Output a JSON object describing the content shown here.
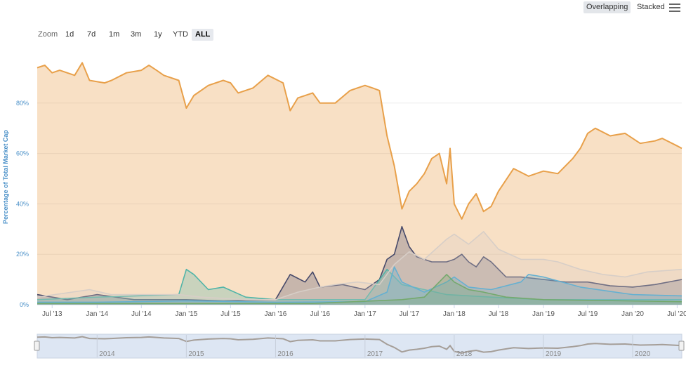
{
  "toolbar": {
    "zoom_label": "Zoom",
    "ranges": [
      "1d",
      "7d",
      "1m",
      "3m",
      "1y",
      "YTD",
      "ALL"
    ],
    "active_range": "ALL",
    "modes": [
      "Overlapping",
      "Stacked"
    ],
    "active_mode": "Overlapping"
  },
  "navigator": {
    "labels": [
      "2014",
      "2015",
      "2016",
      "2017",
      "2018",
      "2019",
      "2020"
    ]
  },
  "chart_data": {
    "type": "area",
    "title": "",
    "ylabel": "Percentage of Total Market Cap",
    "ylim": [
      0,
      100
    ],
    "y_ticks": [
      "0%",
      "20%",
      "40%",
      "60%",
      "80%"
    ],
    "x_ticks": [
      "Jul '13",
      "Jan '14",
      "Jul '14",
      "Jan '15",
      "Jul '15",
      "Jan '16",
      "Jul '16",
      "Jan '17",
      "Jul '17",
      "Jan '18",
      "Jul '18",
      "Jan '19",
      "Jul '19",
      "Jan '20",
      "Jul '20"
    ],
    "grid": true,
    "legend": "bottom",
    "series": [
      {
        "color": "#e8a04a",
        "points": [
          [
            "2013-05-01",
            94
          ],
          [
            "2013-06-01",
            95
          ],
          [
            "2013-07-01",
            92
          ],
          [
            "2013-08-01",
            93
          ],
          [
            "2013-10-01",
            91
          ],
          [
            "2013-11-01",
            96
          ],
          [
            "2013-12-01",
            89
          ],
          [
            "2014-02-01",
            88
          ],
          [
            "2014-03-01",
            89
          ],
          [
            "2014-05-01",
            92
          ],
          [
            "2014-07-01",
            93
          ],
          [
            "2014-08-01",
            95
          ],
          [
            "2014-09-01",
            93
          ],
          [
            "2014-10-01",
            91
          ],
          [
            "2014-12-01",
            89
          ],
          [
            "2015-01-01",
            78
          ],
          [
            "2015-02-01",
            83
          ],
          [
            "2015-04-01",
            87
          ],
          [
            "2015-06-01",
            89
          ],
          [
            "2015-07-01",
            88
          ],
          [
            "2015-08-01",
            84
          ],
          [
            "2015-10-01",
            86
          ],
          [
            "2015-12-01",
            91
          ],
          [
            "2016-02-01",
            88
          ],
          [
            "2016-03-01",
            77
          ],
          [
            "2016-04-01",
            82
          ],
          [
            "2016-06-01",
            84
          ],
          [
            "2016-07-01",
            80
          ],
          [
            "2016-09-01",
            80
          ],
          [
            "2016-11-01",
            85
          ],
          [
            "2017-01-01",
            87
          ],
          [
            "2017-02-01",
            86
          ],
          [
            "2017-03-01",
            85
          ],
          [
            "2017-04-01",
            67
          ],
          [
            "2017-05-01",
            55
          ],
          [
            "2017-06-01",
            38
          ],
          [
            "2017-07-01",
            45
          ],
          [
            "2017-08-01",
            48
          ],
          [
            "2017-09-01",
            52
          ],
          [
            "2017-10-01",
            58
          ],
          [
            "2017-11-01",
            60
          ],
          [
            "2017-12-01",
            48
          ],
          [
            "2017-12-15",
            62
          ],
          [
            "2018-01-01",
            40
          ],
          [
            "2018-02-01",
            34
          ],
          [
            "2018-03-01",
            40
          ],
          [
            "2018-04-01",
            44
          ],
          [
            "2018-05-01",
            37
          ],
          [
            "2018-06-01",
            39
          ],
          [
            "2018-07-01",
            45
          ],
          [
            "2018-09-01",
            54
          ],
          [
            "2018-11-01",
            51
          ],
          [
            "2019-01-01",
            53
          ],
          [
            "2019-03-01",
            52
          ],
          [
            "2019-05-01",
            58
          ],
          [
            "2019-06-01",
            62
          ],
          [
            "2019-07-01",
            68
          ],
          [
            "2019-08-01",
            70
          ],
          [
            "2019-10-01",
            67
          ],
          [
            "2019-12-01",
            68
          ],
          [
            "2020-02-01",
            64
          ],
          [
            "2020-04-01",
            65
          ],
          [
            "2020-05-01",
            66
          ],
          [
            "2020-07-01",
            63
          ],
          [
            "2020-07-20",
            62
          ]
        ]
      },
      {
        "color": "#474a6a",
        "points": [
          [
            "2013-05-01",
            4
          ],
          [
            "2013-09-01",
            2
          ],
          [
            "2014-01-01",
            4
          ],
          [
            "2014-06-01",
            2
          ],
          [
            "2015-01-01",
            2
          ],
          [
            "2015-06-01",
            1.5
          ],
          [
            "2016-01-01",
            2
          ],
          [
            "2016-03-01",
            12
          ],
          [
            "2016-05-01",
            9
          ],
          [
            "2016-06-01",
            13
          ],
          [
            "2016-07-01",
            7
          ],
          [
            "2016-10-01",
            8
          ],
          [
            "2017-01-01",
            6
          ],
          [
            "2017-03-01",
            10
          ],
          [
            "2017-04-01",
            18
          ],
          [
            "2017-05-01",
            20
          ],
          [
            "2017-06-01",
            31
          ],
          [
            "2017-07-01",
            23
          ],
          [
            "2017-08-01",
            19
          ],
          [
            "2017-10-01",
            17
          ],
          [
            "2017-12-01",
            17
          ],
          [
            "2018-01-01",
            18
          ],
          [
            "2018-02-01",
            20
          ],
          [
            "2018-03-01",
            17
          ],
          [
            "2018-04-01",
            15
          ],
          [
            "2018-05-01",
            19
          ],
          [
            "2018-06-01",
            17
          ],
          [
            "2018-08-01",
            11
          ],
          [
            "2018-10-01",
            11
          ],
          [
            "2019-01-01",
            10
          ],
          [
            "2019-04-01",
            9
          ],
          [
            "2019-07-01",
            9
          ],
          [
            "2019-10-01",
            7.5
          ],
          [
            "2020-01-01",
            7
          ],
          [
            "2020-04-01",
            8
          ],
          [
            "2020-07-20",
            10
          ]
        ]
      },
      {
        "color": "#50b4a8",
        "points": [
          [
            "2013-05-01",
            2
          ],
          [
            "2014-01-01",
            3
          ],
          [
            "2014-12-01",
            4
          ],
          [
            "2015-01-01",
            14
          ],
          [
            "2015-02-01",
            12
          ],
          [
            "2015-04-01",
            6
          ],
          [
            "2015-06-01",
            7
          ],
          [
            "2015-09-01",
            3
          ],
          [
            "2016-01-01",
            2
          ],
          [
            "2017-01-01",
            2
          ],
          [
            "2017-04-01",
            14
          ],
          [
            "2017-06-01",
            8
          ],
          [
            "2017-09-01",
            6
          ],
          [
            "2017-12-01",
            4
          ],
          [
            "2018-06-01",
            3
          ],
          [
            "2019-01-01",
            2
          ],
          [
            "2020-07-20",
            2
          ]
        ]
      },
      {
        "color": "#3aa6d6",
        "points": [
          [
            "2013-05-01",
            1
          ],
          [
            "2014-01-01",
            1
          ],
          [
            "2015-01-01",
            1.5
          ],
          [
            "2016-01-01",
            1
          ],
          [
            "2017-01-01",
            1.2
          ],
          [
            "2017-04-01",
            5
          ],
          [
            "2017-05-01",
            15
          ],
          [
            "2017-06-01",
            9
          ],
          [
            "2017-09-01",
            5
          ],
          [
            "2017-12-01",
            9
          ],
          [
            "2018-01-01",
            11
          ],
          [
            "2018-03-01",
            7
          ],
          [
            "2018-06-01",
            6
          ],
          [
            "2018-10-01",
            9
          ],
          [
            "2018-11-01",
            12
          ],
          [
            "2019-01-01",
            11
          ],
          [
            "2019-06-01",
            7
          ],
          [
            "2020-01-01",
            4
          ],
          [
            "2020-07-20",
            3.5
          ]
        ]
      },
      {
        "color": "#4e9b4b",
        "points": [
          [
            "2013-05-01",
            0.5
          ],
          [
            "2016-06-01",
            0.5
          ],
          [
            "2017-06-01",
            2
          ],
          [
            "2017-09-01",
            3
          ],
          [
            "2017-12-01",
            12
          ],
          [
            "2018-01-01",
            9
          ],
          [
            "2018-03-01",
            6
          ],
          [
            "2018-05-01",
            5
          ],
          [
            "2018-08-01",
            3
          ],
          [
            "2019-01-01",
            2
          ],
          [
            "2020-07-20",
            1.2
          ]
        ]
      },
      {
        "color": "#d7cec7",
        "points": [
          [
            "2013-05-01",
            3
          ],
          [
            "2013-12-01",
            6
          ],
          [
            "2014-03-01",
            4
          ],
          [
            "2014-12-01",
            4
          ],
          [
            "2015-03-01",
            3
          ],
          [
            "2015-09-01",
            2
          ],
          [
            "2016-01-01",
            2
          ],
          [
            "2016-04-01",
            5
          ],
          [
            "2016-07-01",
            7
          ],
          [
            "2016-09-01",
            8
          ],
          [
            "2016-12-01",
            9
          ],
          [
            "2017-03-01",
            8
          ],
          [
            "2017-05-01",
            16
          ],
          [
            "2017-07-01",
            21
          ],
          [
            "2017-09-01",
            18
          ],
          [
            "2017-12-01",
            26
          ],
          [
            "2018-01-01",
            28
          ],
          [
            "2018-03-01",
            24
          ],
          [
            "2018-05-01",
            29
          ],
          [
            "2018-07-01",
            22
          ],
          [
            "2018-10-01",
            18
          ],
          [
            "2019-01-01",
            18
          ],
          [
            "2019-03-01",
            17
          ],
          [
            "2019-06-01",
            14
          ],
          [
            "2019-09-01",
            12
          ],
          [
            "2019-12-01",
            11
          ],
          [
            "2020-03-01",
            13
          ],
          [
            "2020-07-20",
            14
          ]
        ]
      }
    ]
  }
}
